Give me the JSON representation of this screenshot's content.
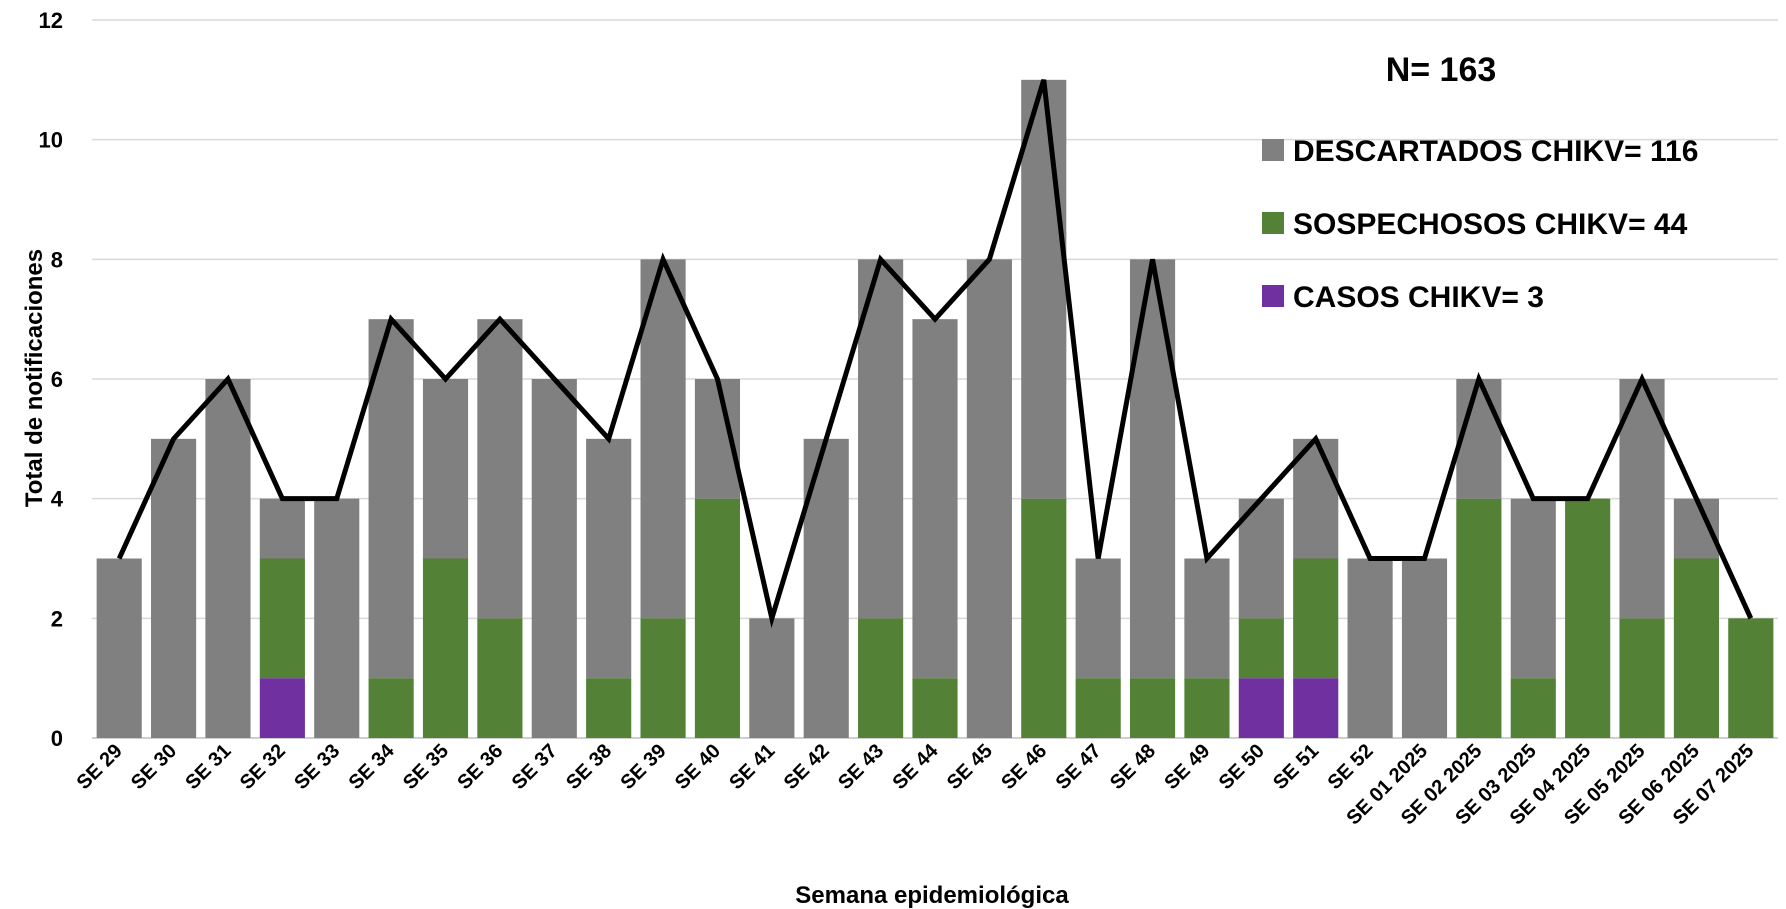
{
  "chart_data": {
    "type": "bar",
    "stacked": true,
    "title": "",
    "xlabel": "Semana epidemiológica",
    "ylabel": "Total de notificaciones",
    "ylim": [
      0,
      12
    ],
    "yticks": [
      0,
      2,
      4,
      6,
      8,
      10,
      12
    ],
    "grid": true,
    "legend_position": "top-right",
    "annotation": "N= 163",
    "categories": [
      "SE 29",
      "SE 30",
      "SE 31",
      "SE 32",
      "SE 33",
      "SE 34",
      "SE 35",
      "SE 36",
      "SE 37",
      "SE 38",
      "SE 39",
      "SE 40",
      "SE 41",
      "SE 42",
      "SE 43",
      "SE 44",
      "SE 45",
      "SE 46",
      "SE 47",
      "SE 48",
      "SE 49",
      "SE 50",
      "SE 51",
      "SE 52",
      "SE 01 2025",
      "SE 02 2025",
      "SE 03 2025",
      "SE 04 2025",
      "SE 05 2025",
      "SE 06 2025",
      "SE 07 2025"
    ],
    "series": [
      {
        "name": "CASOS CHIKV= 3",
        "color": "#7030A0",
        "values": [
          0,
          0,
          0,
          1,
          0,
          0,
          0,
          0,
          0,
          0,
          0,
          0,
          0,
          0,
          0,
          0,
          0,
          0,
          0,
          0,
          0,
          1,
          1,
          0,
          0,
          0,
          0,
          0,
          0,
          0,
          0
        ]
      },
      {
        "name": "SOSPECHOSOS CHIKV= 44",
        "color": "#538135",
        "values": [
          0,
          0,
          0,
          2,
          0,
          1,
          3,
          2,
          0,
          1,
          2,
          4,
          0,
          0,
          2,
          1,
          0,
          4,
          1,
          1,
          1,
          1,
          2,
          0,
          0,
          4,
          1,
          4,
          2,
          3,
          2
        ]
      },
      {
        "name": "DESCARTADOS CHIKV= 116",
        "color": "#808080",
        "values": [
          3,
          5,
          6,
          1,
          4,
          6,
          3,
          5,
          6,
          4,
          6,
          2,
          2,
          5,
          6,
          6,
          8,
          7,
          2,
          7,
          2,
          2,
          2,
          3,
          3,
          2,
          3,
          0,
          4,
          1,
          0
        ]
      }
    ],
    "line": {
      "color": "#000000",
      "values": [
        3,
        5,
        6,
        4,
        4,
        7,
        6,
        7,
        6,
        5,
        8,
        6,
        2,
        5,
        8,
        7,
        8,
        11,
        3,
        8,
        3,
        4,
        5,
        3,
        3,
        6,
        4,
        4,
        6,
        4,
        2
      ]
    },
    "legend_order": [
      "DESCARTADOS CHIKV= 116",
      "SOSPECHOSOS CHIKV= 44",
      "CASOS CHIKV= 3"
    ],
    "colors": {
      "grid": "#D9D9D9",
      "axis": "#BFBFBF"
    }
  }
}
